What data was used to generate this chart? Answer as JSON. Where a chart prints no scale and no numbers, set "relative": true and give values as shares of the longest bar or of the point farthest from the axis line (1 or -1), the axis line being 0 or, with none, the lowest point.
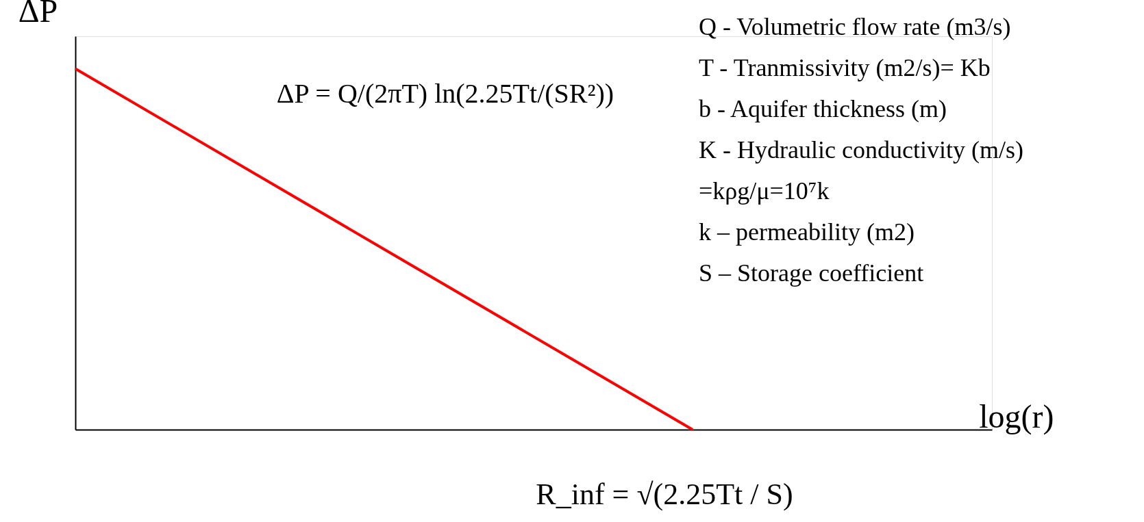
{
  "chart_data": {
    "type": "line",
    "relative": true,
    "xlabel": "log(r)",
    "ylabel": "ΔP",
    "categories": [
      null,
      null,
      null,
      null
    ],
    "series": [
      {
        "color": "#ff0000",
        "values": [
          1,
          0.5,
          0,
          null
        ]
      }
    ],
    "grid": false,
    "marker": "none",
    "line_style": "solid",
    "tick_labels": false,
    "annotations": [
      "ΔP = Q/(2πT) ln(2.25Tt/(SR²))",
      "Q - Volumetric flow rate (m3/s)",
      "T - Tranmissivity (m2/s)= Kb",
      "b - Aquifer thickness (m)",
      "K - Hydraulic conductivity (m/s)",
      "=kρg/μ=10⁷k",
      "k – permeability (m2)",
      "S – Storage coefficient",
      "R_inf = √(2.25Tt / S)"
    ]
  }
}
